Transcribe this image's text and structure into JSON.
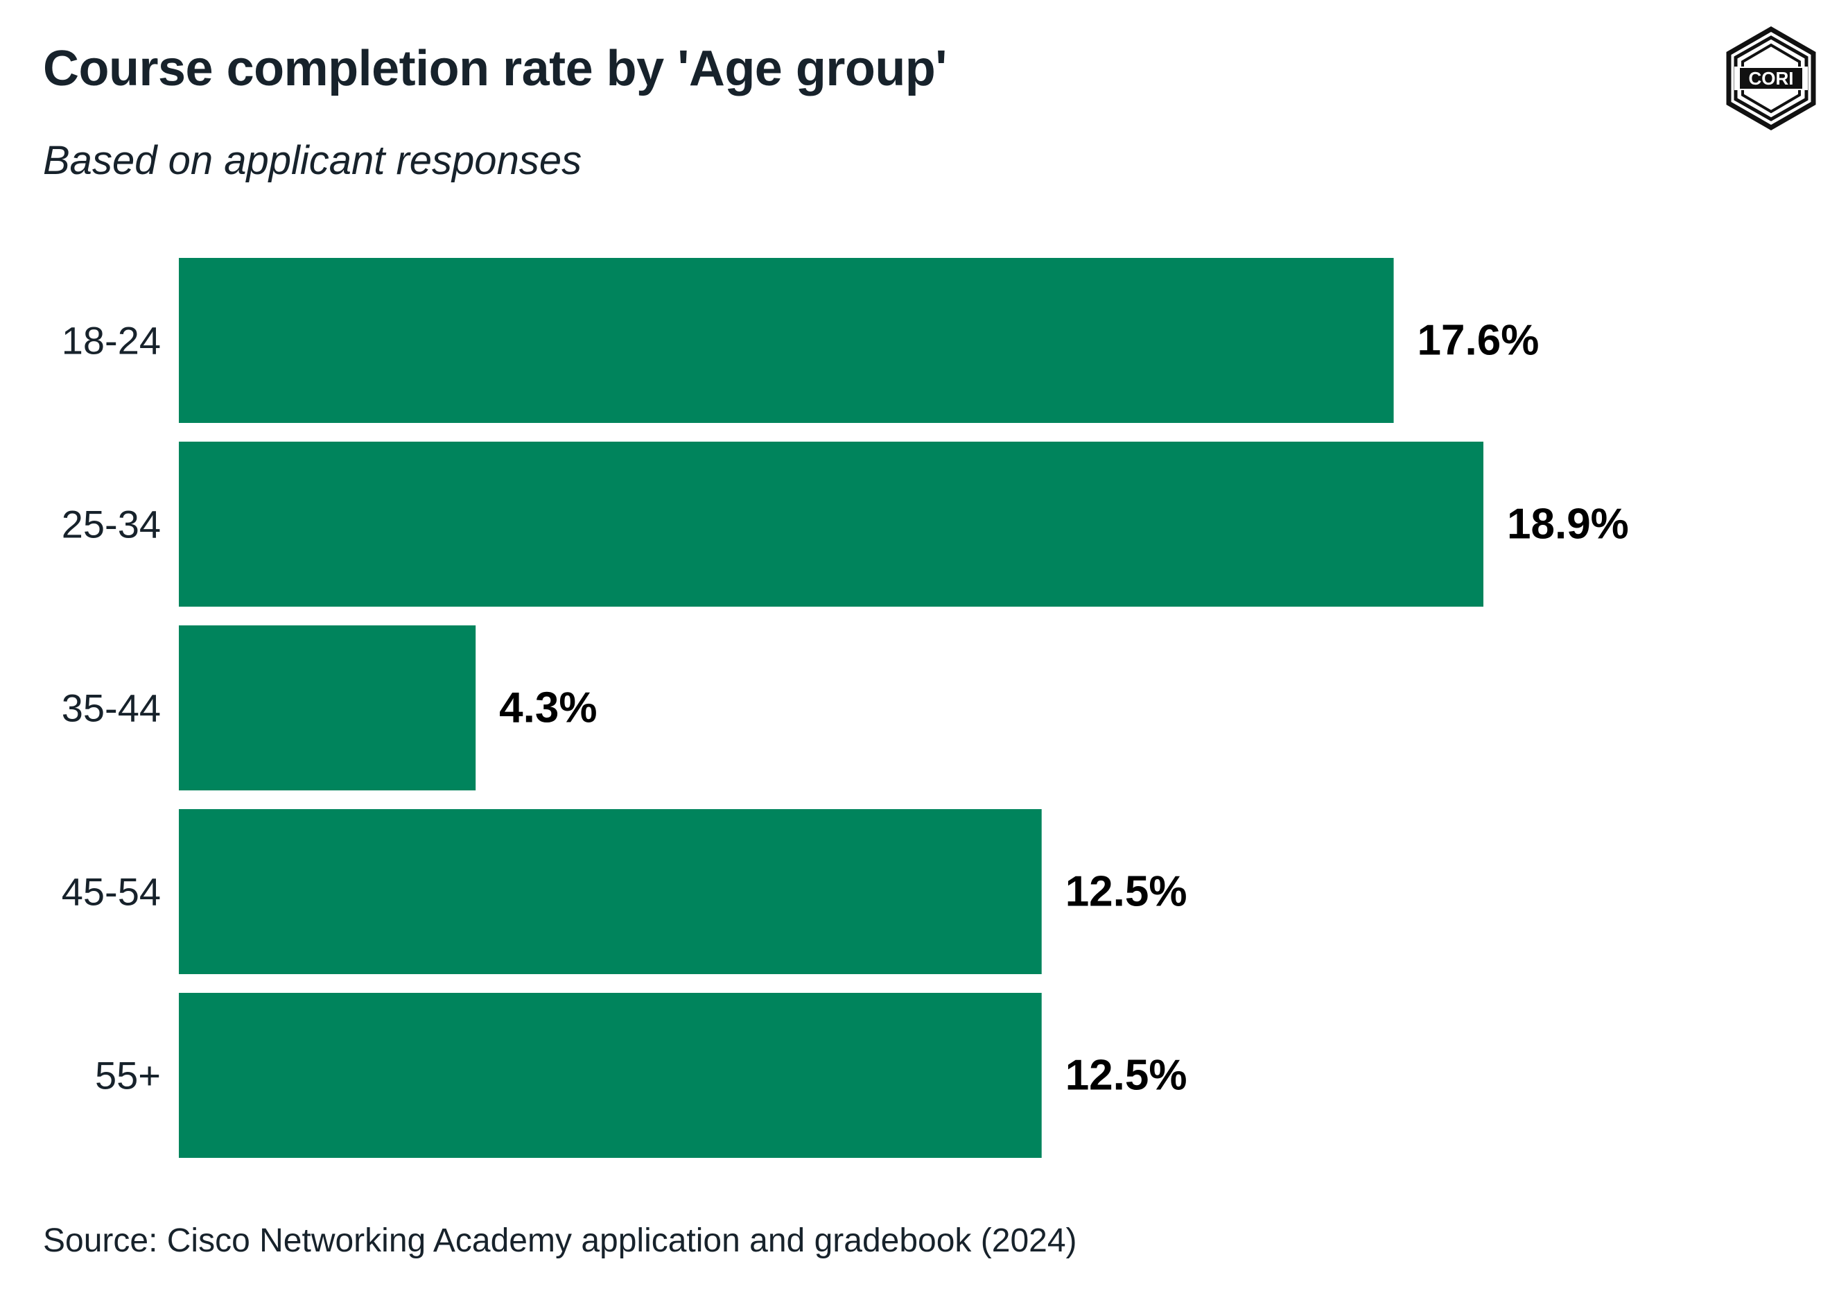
{
  "header": {
    "title": "Course completion rate by 'Age group'",
    "subtitle": "Based on applicant responses"
  },
  "logo": {
    "text": "CORI",
    "icon": "cori-hexagon-logo-icon"
  },
  "footer": {
    "source": "Source: Cisco Networking Academy application and gradebook (2024)"
  },
  "colors": {
    "bar": "#00845c",
    "text": "#17222b",
    "value_label": "#000000"
  },
  "chart_data": {
    "type": "bar",
    "orientation": "horizontal",
    "categories": [
      "18-24",
      "25-34",
      "35-44",
      "45-54",
      "55+"
    ],
    "values": [
      17.6,
      18.9,
      4.3,
      12.5,
      12.5
    ],
    "value_labels": [
      "17.6%",
      "18.9%",
      "4.3%",
      "12.5%",
      "12.5%"
    ],
    "title": "Course completion rate by 'Age group'",
    "subtitle": "Based on applicant responses",
    "xlim": [
      0,
      18.9
    ],
    "grid": false,
    "legend": "none"
  }
}
